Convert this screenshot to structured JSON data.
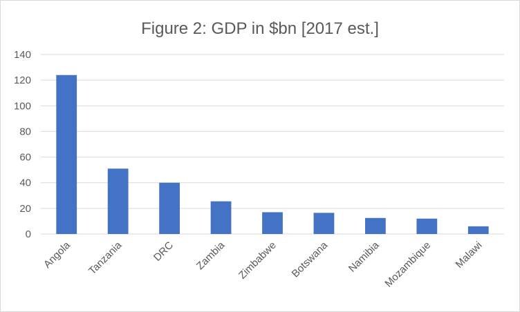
{
  "chart_data": {
    "type": "bar",
    "title": "Figure 2: GDP in $bn [2017 est.]",
    "xlabel": "",
    "ylabel": "",
    "categories": [
      "Angola",
      "Tanzania",
      "DRC",
      "Zambia",
      "Zimbabwe",
      "Botswana",
      "Namibia",
      "Mozambique",
      "Malawi"
    ],
    "values": [
      124,
      51,
      40,
      25.5,
      17,
      16.5,
      12.5,
      12,
      6
    ],
    "ylim": [
      0,
      140
    ],
    "yticks": [
      0,
      20,
      40,
      60,
      80,
      100,
      120,
      140
    ],
    "grid": true,
    "legend": "none",
    "bar_color": "#4472c4"
  }
}
